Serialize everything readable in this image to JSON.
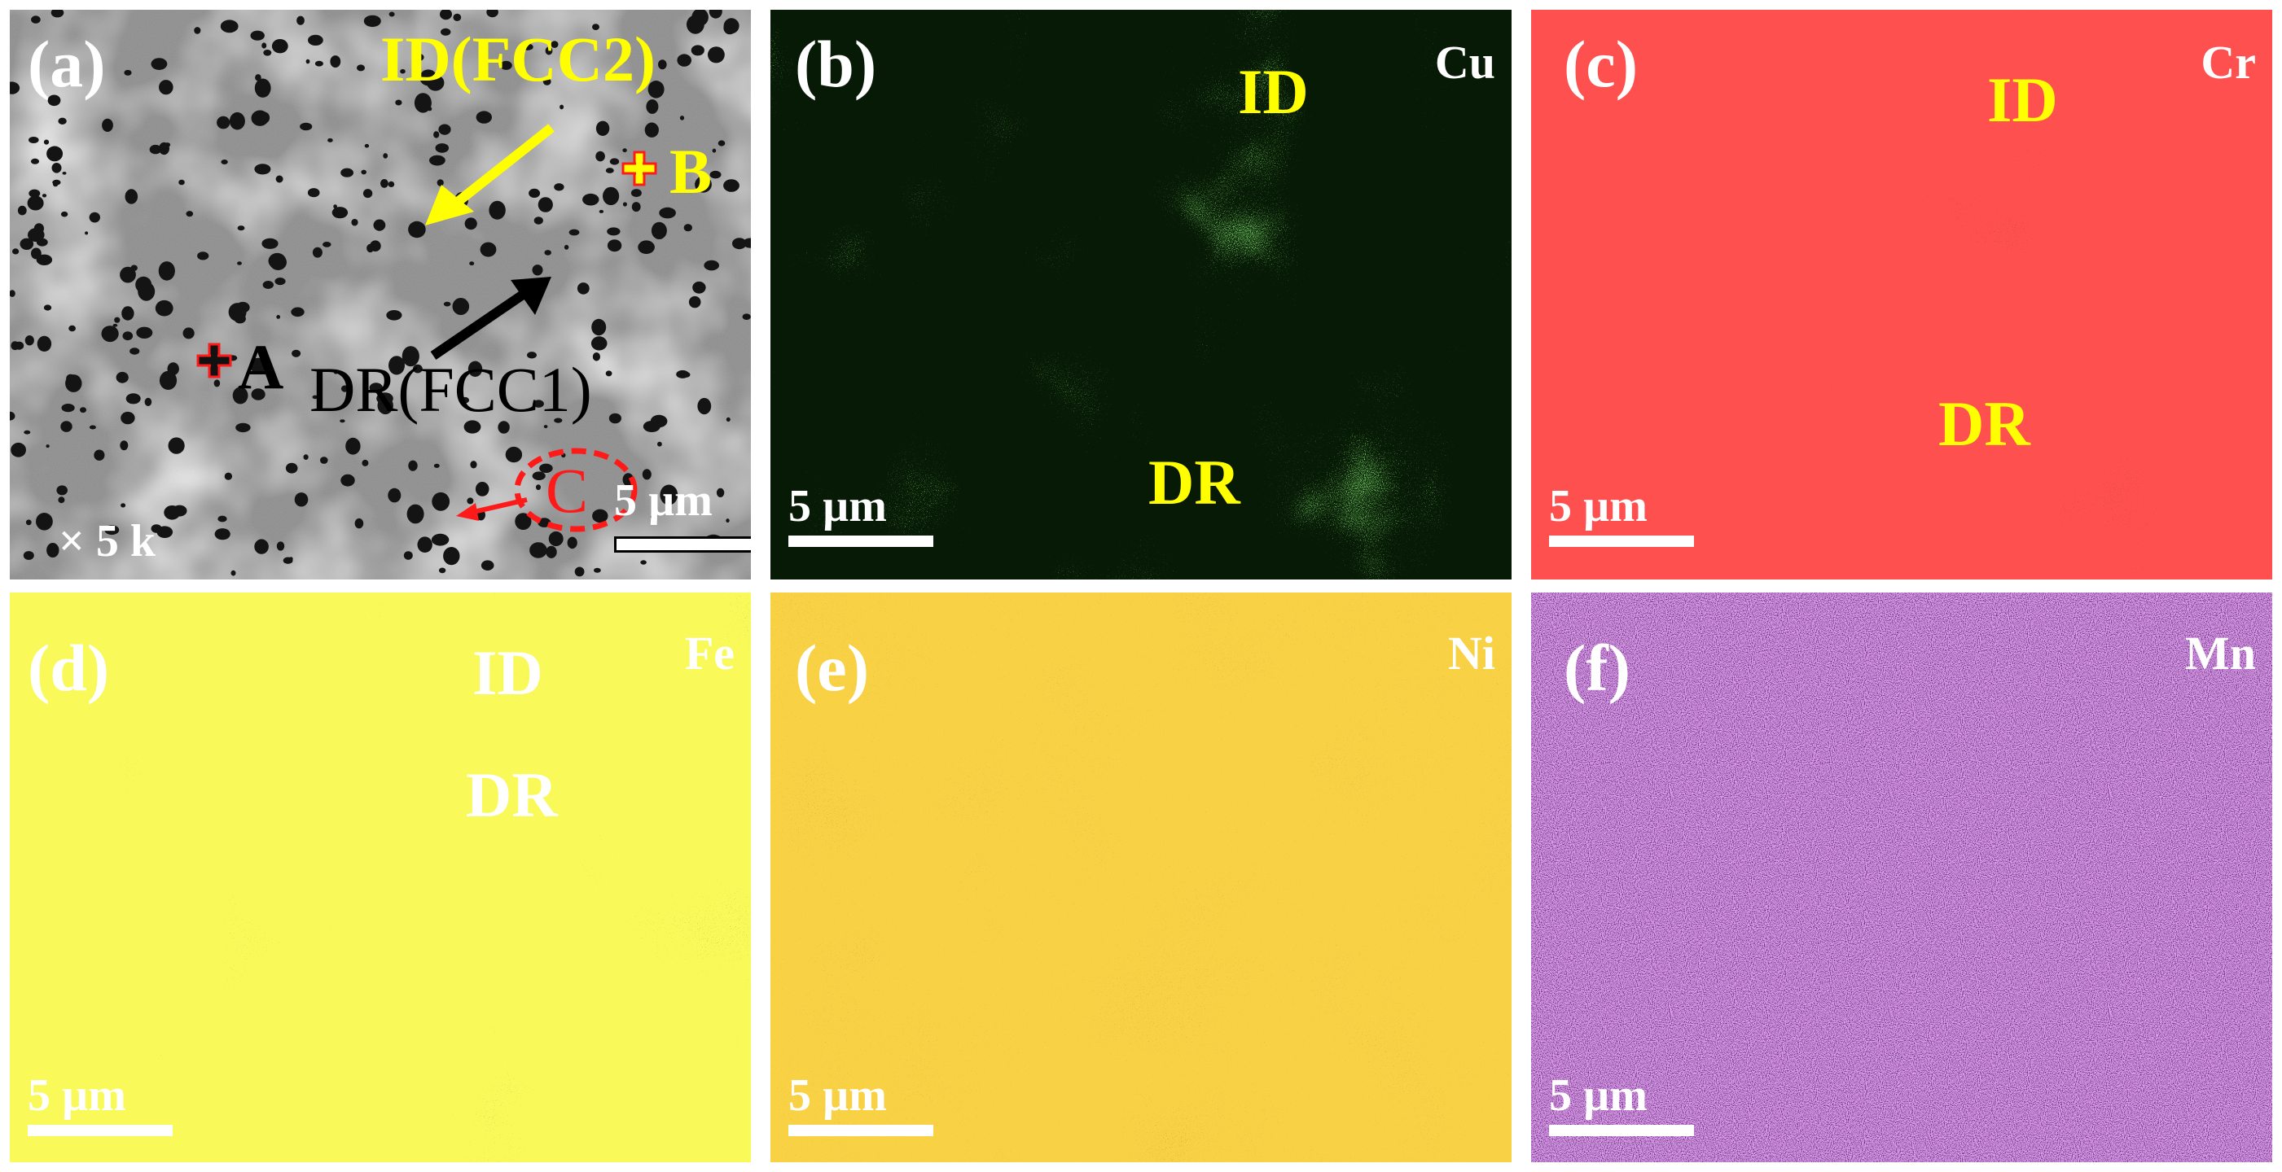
{
  "figure": {
    "panels": [
      {
        "label": "(a)",
        "scale": "5 µm",
        "magnification": "× 5 k",
        "annotations": {
          "id_label": "ID(FCC2)",
          "dr_label": "DR(FCC1)",
          "point_a": "A",
          "point_b": "B",
          "point_c": "C"
        }
      },
      {
        "label": "(b)",
        "element": "Cu",
        "id": "ID",
        "dr": "DR",
        "scale": "5 µm",
        "color": "#3ddc2c"
      },
      {
        "label": "(c)",
        "element": "Cr",
        "id": "ID",
        "dr": "DR",
        "scale": "5 µm",
        "color": "#ff1a1a"
      },
      {
        "label": "(d)",
        "element": "Fe",
        "id": "ID",
        "dr": "DR",
        "scale": "5 µm",
        "color": "#f2f21a"
      },
      {
        "label": "(e)",
        "element": "Ni",
        "scale": "5 µm",
        "color": "#f2a20f"
      },
      {
        "label": "(f)",
        "element": "Mn",
        "scale": "5 µm",
        "color": "#c24fe6"
      }
    ],
    "colors": {
      "yellow_text": "#ffff00",
      "red_marker": "#ff1a1a",
      "sem_background": "#8c8c8c"
    }
  }
}
